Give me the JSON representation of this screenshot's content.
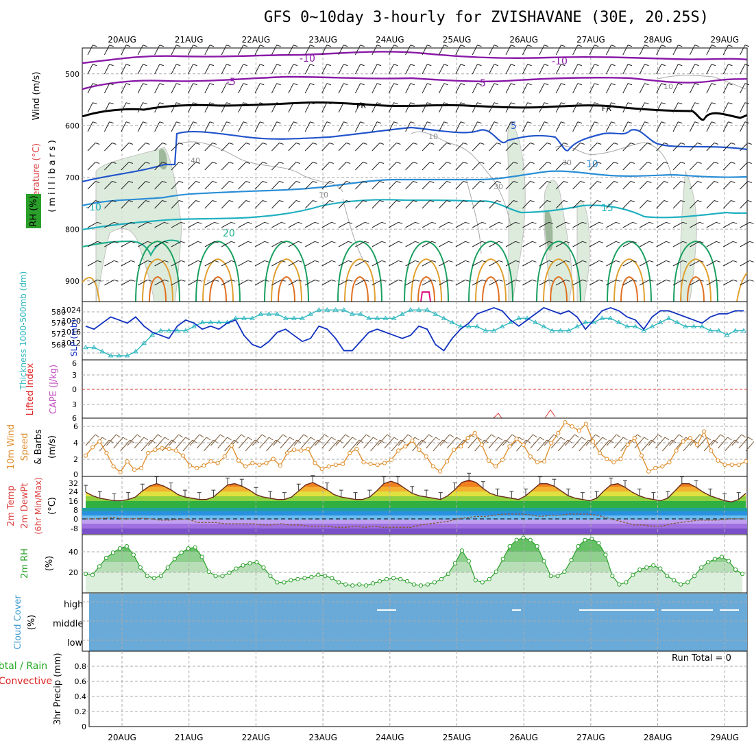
{
  "title": "GFS 0~10day 3-hourly for ZVISHAVANE (30E, 20.25S)",
  "dates": [
    "20AUG",
    "21AUG",
    "22AUG",
    "23AUG",
    "24AUG",
    "25AUG",
    "26AUG",
    "27AUG",
    "28AUG",
    "29AUG"
  ],
  "colors": {
    "t_minus10": "#8a1aa8",
    "t_minus5": "#8a1aa8",
    "t_fr": "#000000",
    "t_5": "#2255cc",
    "t_10": "#2a8ed6",
    "t_15": "#1fb0c0",
    "t_20": "#22b090",
    "t_25": "#1aa060",
    "t_30": "#e0a030",
    "t_35": "#e07020",
    "t_40": "#e01080",
    "slp": "#1030c0",
    "thick": "#30b8c0",
    "wind10": "#e09030",
    "rh": "#2aa02a",
    "cloud": "#6aaad8",
    "precip_total": "#22aa22",
    "precip_conv": "#dd2222"
  },
  "axis_labels": {
    "upper_wind": "Wind (m/s)",
    "upper_temp": "Temperature (°C)",
    "upper_rh": "RH (%)",
    "upper_press": "(millibars)",
    "thick": "Thickness 1000-500mb (dm)",
    "slp": "SLP (mb)",
    "li": "Lifted Index",
    "cape": "CAPE (J/kg)",
    "wind10_a": "10m Wind",
    "wind10_b": "Speed",
    "wind10_c": "& Barbs",
    "wind10_unit": "(m/s)",
    "temp_a": "2m Temp",
    "temp_b": "2m DewPt",
    "temp_c": "(6hr Min/Max)",
    "temp_unit": "(°C)",
    "rh2m": "2m RH",
    "rh2m_unit": "(%)",
    "cloud": "Cloud Cover",
    "cloud_unit": "(%)",
    "precip_a": "Total / Rain",
    "precip_b": "Convective",
    "precip_c": "3hr Precip (mm)",
    "run_total": "Run Total = 0"
  },
  "contour_labels": {
    "m10": "-10",
    "m5": "-5",
    "fr": "FR",
    "p5": "5",
    "p10": "10",
    "p15": "15",
    "p20": "20",
    "lm10": "-10",
    "rh10": "10",
    "rh30": "30",
    "rh40": "40"
  },
  "ticks": {
    "press": [
      "500",
      "600",
      "700",
      "800",
      "900"
    ],
    "slp": [
      "1024",
      "1020",
      "1016",
      "1012"
    ],
    "thick": [
      "580",
      "576",
      "572",
      "568"
    ],
    "li": [
      "6",
      "3",
      "0",
      "3",
      "6"
    ],
    "wind10": [
      "6",
      "4",
      "2",
      "0"
    ],
    "temp": [
      "32",
      "24",
      "16",
      "8",
      "0",
      "-8"
    ],
    "rh2m": [
      "40",
      "20"
    ],
    "cloud": [
      "high",
      "middle",
      "low"
    ],
    "precip": [
      "0.8",
      "0.6",
      "0.4",
      "0.2",
      "0"
    ]
  },
  "chart_data": [
    {
      "type": "line",
      "title": "SLP (mb)",
      "ylim": [
        1008,
        1027
      ],
      "x_hours_step": 3,
      "values": [
        1019,
        1018,
        1020,
        1022,
        1021,
        1020,
        1022,
        1019,
        1017,
        1016,
        1015,
        1019,
        1021,
        1020,
        1018,
        1019,
        1018,
        1020,
        1021,
        1016,
        1013,
        1012,
        1014,
        1017,
        1018,
        1016,
        1014,
        1015,
        1019,
        1018,
        1015,
        1011,
        1011,
        1014,
        1017,
        1018,
        1017,
        1016,
        1015,
        1016,
        1019,
        1018,
        1013,
        1011,
        1015,
        1018,
        1020,
        1023,
        1024,
        1025,
        1024,
        1021,
        1019,
        1021,
        1023,
        1025,
        1024,
        1023,
        1024,
        1022,
        1018,
        1021,
        1024,
        1025,
        1024,
        1022,
        1021,
        1018,
        1022,
        1024,
        1024,
        1023,
        1022,
        1021,
        1020,
        1022,
        1023,
        1023,
        1024,
        1024
      ]
    },
    {
      "type": "line",
      "title": "Thickness 1000-500mb (dm)",
      "ylim": [
        568,
        582
      ],
      "values": [
        571,
        571,
        570,
        569,
        569,
        569,
        570,
        572,
        574,
        575,
        575,
        575,
        575,
        576,
        577,
        577,
        577,
        577,
        578,
        578,
        578,
        579,
        579,
        579,
        578,
        578,
        578,
        579,
        580,
        580,
        580,
        580,
        579,
        579,
        578,
        578,
        578,
        578,
        579,
        580,
        580,
        580,
        579,
        578,
        577,
        576,
        576,
        576,
        575,
        575,
        576,
        577,
        578,
        578,
        577,
        576,
        575,
        575,
        575,
        576,
        577,
        577,
        578,
        578,
        577,
        576,
        576,
        575,
        576,
        577,
        578,
        577,
        576,
        576,
        576,
        575,
        575,
        574,
        575,
        575
      ]
    },
    {
      "type": "line",
      "title": "10m Wind Speed (m/s)",
      "ylim": [
        0,
        7
      ],
      "values": [
        2.5,
        3.5,
        4.2,
        2.8,
        1.2,
        0.5,
        1.8,
        0.8,
        1,
        2.8,
        3.2,
        3.4,
        3.3,
        3.1,
        2.5,
        1.3,
        1,
        1.3,
        1.8,
        1.6,
        2.4,
        3.7,
        1.9,
        1.2,
        1.6,
        1.4,
        1.6,
        2.1,
        1.3,
        2.8,
        3.2,
        3.1,
        3.3,
        1.6,
        0.9,
        1.2,
        1.4,
        1.5,
        2.8,
        3.3,
        1.7,
        1.5,
        1.4,
        1.6,
        2,
        3.1,
        3.6,
        4.3,
        3.2,
        2.4,
        1.2,
        0.6,
        1.8,
        3.2,
        3.6,
        4.6,
        5.2,
        3.8,
        1.9,
        1.2,
        2,
        3.6,
        4.5,
        3.8,
        2.4,
        1.7,
        1.8,
        4,
        5.2,
        6.5,
        6,
        5.5,
        6.3,
        4.2,
        2.8,
        2.1,
        1.7,
        2.1,
        3.8,
        4.6,
        2.5,
        0.6,
        1,
        1.2,
        1.7,
        3.1,
        4.2,
        4.6,
        3.8,
        5.4,
        3.1,
        1.9,
        1.4,
        1.4,
        1.4,
        1.8
      ]
    },
    {
      "type": "area",
      "title": "2m Temp (°C)",
      "ylim": [
        -12,
        36
      ],
      "values": [
        23,
        20,
        18,
        17,
        16,
        16,
        17,
        19,
        24,
        28,
        30,
        28,
        25,
        21,
        19,
        18,
        17,
        17,
        19,
        24,
        29,
        30,
        28,
        25,
        21,
        19,
        18,
        17,
        17,
        19,
        24,
        29,
        31,
        28,
        25,
        21,
        19,
        18,
        17,
        17,
        19,
        24,
        30,
        32,
        30,
        26,
        22,
        20,
        19,
        18,
        17,
        20,
        25,
        31,
        33,
        31,
        26,
        22,
        20,
        19,
        18,
        17,
        20,
        25,
        30,
        30,
        28,
        24,
        20,
        18,
        17,
        16,
        18,
        24,
        29,
        30,
        27,
        23,
        20,
        18,
        17,
        16,
        18,
        24,
        30,
        30,
        27,
        23,
        20,
        18,
        16,
        15,
        17,
        22
      ]
    },
    {
      "type": "line",
      "title": "2m DewPt (°C)",
      "ylim": [
        -12,
        36
      ],
      "values": [
        1,
        1,
        1.5,
        2,
        1,
        1,
        1.5,
        1,
        0,
        0,
        0.5,
        1,
        -2,
        -2,
        -2,
        -3,
        -3,
        -3,
        -3,
        -4,
        -4,
        -3,
        -4,
        -4,
        -5,
        -5,
        -5,
        -6,
        -6,
        -5,
        -6,
        -5,
        -6,
        -6,
        -6,
        -6,
        -4,
        -3,
        -2,
        -1,
        1,
        2,
        3,
        3,
        4,
        5,
        5,
        5,
        4,
        3,
        4,
        4,
        5,
        5,
        5,
        4,
        2,
        0,
        -2,
        -4,
        -4,
        -5,
        -5,
        -3,
        -2,
        -1,
        0,
        0,
        0,
        1,
        1,
        1
      ]
    },
    {
      "type": "area",
      "title": "2m RH (%)",
      "ylim": [
        0,
        55
      ],
      "values": [
        18,
        17,
        25,
        33,
        38,
        42,
        44,
        36,
        24,
        16,
        14,
        16,
        24,
        32,
        38,
        42,
        43,
        34,
        20,
        16,
        16,
        19,
        23,
        26,
        28,
        29,
        24,
        16,
        10,
        10,
        12,
        13,
        14,
        15,
        17,
        16,
        14,
        10,
        8,
        7,
        8,
        7,
        9,
        11,
        13,
        14,
        13,
        11,
        8,
        7,
        8,
        10,
        13,
        18,
        28,
        40,
        30,
        12,
        10,
        13,
        20,
        32,
        44,
        50,
        52,
        50,
        44,
        30,
        16,
        16,
        20,
        31,
        44,
        50,
        51,
        47,
        36,
        16,
        8,
        10,
        17,
        22,
        24,
        26,
        23,
        16,
        12,
        8,
        10,
        16,
        24,
        29,
        32,
        34,
        30,
        22,
        18
      ]
    },
    {
      "type": "bar",
      "title": "3hr Precip (mm)",
      "categories": [
        "total",
        "convective"
      ],
      "values": [
        0,
        0
      ],
      "ylim": [
        0,
        1
      ]
    }
  ]
}
